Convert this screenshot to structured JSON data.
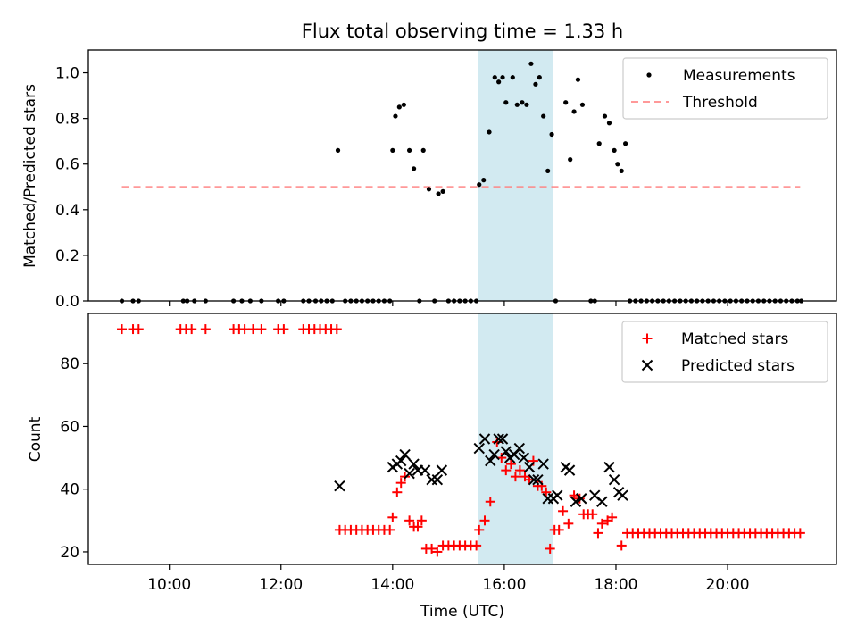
{
  "title": "Flux total observing time = 1.33 h",
  "x_axis": {
    "label": "Time (UTC)",
    "range_hours": [
      8.55,
      21.95
    ],
    "ticks": [
      {
        "value": 10,
        "label": "10:00"
      },
      {
        "value": 12,
        "label": "12:00"
      },
      {
        "value": 14,
        "label": "14:00"
      },
      {
        "value": 16,
        "label": "16:00"
      },
      {
        "value": 18,
        "label": "18:00"
      },
      {
        "value": 20,
        "label": "20:00"
      }
    ]
  },
  "shaded_interval_hours": [
    15.53,
    16.87
  ],
  "colors": {
    "measurements": "#000000",
    "threshold": "#ff7f7f",
    "matched": "#ff0000",
    "predicted": "#000000",
    "band": "#add8e6"
  },
  "chart_data": [
    {
      "type": "scatter",
      "ylabel": "Matched/Predicted stars",
      "ylim": [
        0,
        1.1
      ],
      "yticks": [
        "0.0",
        "0.2",
        "0.4",
        "0.6",
        "0.8",
        "1.0"
      ],
      "legend": {
        "placement": "upper right",
        "entries": [
          "Measurements",
          "Threshold"
        ]
      },
      "threshold": {
        "name": "Threshold",
        "value": 0.5,
        "x_range": [
          9.15,
          21.3
        ]
      },
      "series": [
        {
          "name": "Measurements",
          "points": [
            [
              9.15,
              0
            ],
            [
              9.35,
              0
            ],
            [
              9.45,
              0
            ],
            [
              10.25,
              0
            ],
            [
              10.32,
              0
            ],
            [
              10.45,
              0
            ],
            [
              10.65,
              0
            ],
            [
              11.15,
              0
            ],
            [
              11.3,
              0
            ],
            [
              11.45,
              0
            ],
            [
              11.65,
              0
            ],
            [
              11.95,
              0
            ],
            [
              12.05,
              0
            ],
            [
              12.4,
              0
            ],
            [
              12.5,
              0
            ],
            [
              12.62,
              0
            ],
            [
              12.72,
              0
            ],
            [
              12.82,
              0
            ],
            [
              12.92,
              0
            ],
            [
              13.02,
              0.66
            ],
            [
              13.15,
              0
            ],
            [
              13.25,
              0
            ],
            [
              13.35,
              0
            ],
            [
              13.45,
              0
            ],
            [
              13.55,
              0
            ],
            [
              13.65,
              0
            ],
            [
              13.75,
              0
            ],
            [
              13.85,
              0
            ],
            [
              13.95,
              0
            ],
            [
              14.0,
              0.66
            ],
            [
              14.05,
              0.81
            ],
            [
              14.12,
              0.85
            ],
            [
              14.2,
              0.86
            ],
            [
              14.3,
              0.66
            ],
            [
              14.38,
              0.58
            ],
            [
              14.48,
              0
            ],
            [
              14.55,
              0.66
            ],
            [
              14.65,
              0.49
            ],
            [
              14.75,
              0
            ],
            [
              14.82,
              0.47
            ],
            [
              14.9,
              0.48
            ],
            [
              15.0,
              0
            ],
            [
              15.1,
              0
            ],
            [
              15.2,
              0
            ],
            [
              15.3,
              0
            ],
            [
              15.4,
              0
            ],
            [
              15.5,
              0
            ],
            [
              15.55,
              0.51
            ],
            [
              15.63,
              0.53
            ],
            [
              15.73,
              0.74
            ],
            [
              15.83,
              0.98
            ],
            [
              15.9,
              0.96
            ],
            [
              15.97,
              0.98
            ],
            [
              16.03,
              0.87
            ],
            [
              16.15,
              0.98
            ],
            [
              16.23,
              0.86
            ],
            [
              16.32,
              0.87
            ],
            [
              16.4,
              0.86
            ],
            [
              16.48,
              1.04
            ],
            [
              16.56,
              0.95
            ],
            [
              16.63,
              0.98
            ],
            [
              16.7,
              0.81
            ],
            [
              16.78,
              0.57
            ],
            [
              16.85,
              0.73
            ],
            [
              16.92,
              0
            ],
            [
              17.1,
              0.87
            ],
            [
              17.18,
              0.62
            ],
            [
              17.25,
              0.83
            ],
            [
              17.32,
              0.97
            ],
            [
              17.4,
              0.86
            ],
            [
              17.55,
              0
            ],
            [
              17.62,
              0
            ],
            [
              17.7,
              0.69
            ],
            [
              17.8,
              0.81
            ],
            [
              17.88,
              0.78
            ],
            [
              17.97,
              0.66
            ],
            [
              18.03,
              0.6
            ],
            [
              18.1,
              0.57
            ],
            [
              18.17,
              0.69
            ],
            [
              18.25,
              0
            ],
            [
              18.35,
              0
            ],
            [
              18.45,
              0
            ],
            [
              18.55,
              0
            ],
            [
              18.65,
              0
            ],
            [
              18.75,
              0
            ],
            [
              18.85,
              0
            ],
            [
              18.95,
              0
            ],
            [
              19.05,
              0
            ],
            [
              19.15,
              0
            ],
            [
              19.25,
              0
            ],
            [
              19.35,
              0
            ],
            [
              19.45,
              0
            ],
            [
              19.55,
              0
            ],
            [
              19.65,
              0
            ],
            [
              19.75,
              0
            ],
            [
              19.85,
              0
            ],
            [
              19.95,
              0
            ],
            [
              20.05,
              0
            ],
            [
              20.15,
              0
            ],
            [
              20.25,
              0
            ],
            [
              20.35,
              0
            ],
            [
              20.45,
              0
            ],
            [
              20.55,
              0
            ],
            [
              20.65,
              0
            ],
            [
              20.75,
              0
            ],
            [
              20.85,
              0
            ],
            [
              20.95,
              0
            ],
            [
              21.05,
              0
            ],
            [
              21.15,
              0
            ],
            [
              21.25,
              0
            ],
            [
              21.32,
              0
            ]
          ]
        }
      ]
    },
    {
      "type": "scatter",
      "ylabel": "Count",
      "xlabel": "Time (UTC)",
      "ylim": [
        16,
        96
      ],
      "yticks": [
        20,
        40,
        60,
        80
      ],
      "legend": {
        "placement": "upper right",
        "entries": [
          "Matched stars",
          "Predicted stars"
        ]
      },
      "series": [
        {
          "name": "Matched stars",
          "points": [
            [
              9.15,
              91
            ],
            [
              9.35,
              91
            ],
            [
              9.45,
              91
            ],
            [
              10.2,
              91
            ],
            [
              10.3,
              91
            ],
            [
              10.4,
              91
            ],
            [
              10.65,
              91
            ],
            [
              11.15,
              91
            ],
            [
              11.25,
              91
            ],
            [
              11.35,
              91
            ],
            [
              11.5,
              91
            ],
            [
              11.65,
              91
            ],
            [
              11.95,
              91
            ],
            [
              12.05,
              91
            ],
            [
              12.4,
              91
            ],
            [
              12.5,
              91
            ],
            [
              12.6,
              91
            ],
            [
              12.7,
              91
            ],
            [
              12.8,
              91
            ],
            [
              12.9,
              91
            ],
            [
              13.0,
              91
            ],
            [
              13.05,
              27
            ],
            [
              13.15,
              27
            ],
            [
              13.25,
              27
            ],
            [
              13.35,
              27
            ],
            [
              13.45,
              27
            ],
            [
              13.55,
              27
            ],
            [
              13.65,
              27
            ],
            [
              13.75,
              27
            ],
            [
              13.85,
              27
            ],
            [
              13.95,
              27
            ],
            [
              14.0,
              31
            ],
            [
              14.08,
              39
            ],
            [
              14.15,
              42
            ],
            [
              14.22,
              44
            ],
            [
              14.3,
              30
            ],
            [
              14.38,
              28
            ],
            [
              14.45,
              28
            ],
            [
              14.52,
              30
            ],
            [
              14.6,
              21
            ],
            [
              14.7,
              21
            ],
            [
              14.8,
              20
            ],
            [
              14.9,
              22
            ],
            [
              15.0,
              22
            ],
            [
              15.1,
              22
            ],
            [
              15.2,
              22
            ],
            [
              15.3,
              22
            ],
            [
              15.4,
              22
            ],
            [
              15.5,
              22
            ],
            [
              15.55,
              27
            ],
            [
              15.65,
              30
            ],
            [
              15.75,
              36
            ],
            [
              15.87,
              55
            ],
            [
              15.95,
              50
            ],
            [
              16.03,
              46
            ],
            [
              16.12,
              48
            ],
            [
              16.2,
              44
            ],
            [
              16.28,
              46
            ],
            [
              16.37,
              44
            ],
            [
              16.45,
              43
            ],
            [
              16.52,
              49
            ],
            [
              16.6,
              41
            ],
            [
              16.67,
              41
            ],
            [
              16.75,
              39
            ],
            [
              16.82,
              21
            ],
            [
              16.9,
              27
            ],
            [
              16.98,
              27
            ],
            [
              17.05,
              33
            ],
            [
              17.15,
              29
            ],
            [
              17.25,
              38
            ],
            [
              17.35,
              37
            ],
            [
              17.42,
              32
            ],
            [
              17.5,
              32
            ],
            [
              17.58,
              32
            ],
            [
              17.68,
              26
            ],
            [
              17.75,
              29
            ],
            [
              17.85,
              30
            ],
            [
              17.93,
              31
            ],
            [
              18.1,
              22
            ],
            [
              18.2,
              26
            ],
            [
              18.3,
              26
            ],
            [
              18.4,
              26
            ],
            [
              18.5,
              26
            ],
            [
              18.6,
              26
            ],
            [
              18.7,
              26
            ],
            [
              18.8,
              26
            ],
            [
              18.9,
              26
            ],
            [
              19.0,
              26
            ],
            [
              19.1,
              26
            ],
            [
              19.2,
              26
            ],
            [
              19.3,
              26
            ],
            [
              19.4,
              26
            ],
            [
              19.5,
              26
            ],
            [
              19.6,
              26
            ],
            [
              19.7,
              26
            ],
            [
              19.8,
              26
            ],
            [
              19.9,
              26
            ],
            [
              20.0,
              26
            ],
            [
              20.1,
              26
            ],
            [
              20.2,
              26
            ],
            [
              20.3,
              26
            ],
            [
              20.4,
              26
            ],
            [
              20.5,
              26
            ],
            [
              20.6,
              26
            ],
            [
              20.7,
              26
            ],
            [
              20.8,
              26
            ],
            [
              20.9,
              26
            ],
            [
              21.0,
              26
            ],
            [
              21.1,
              26
            ],
            [
              21.2,
              26
            ],
            [
              21.3,
              26
            ]
          ]
        },
        {
          "name": "Predicted stars",
          "points": [
            [
              13.05,
              41
            ],
            [
              14.0,
              47
            ],
            [
              14.08,
              48
            ],
            [
              14.15,
              49
            ],
            [
              14.22,
              51
            ],
            [
              14.3,
              45
            ],
            [
              14.38,
              48
            ],
            [
              14.45,
              46
            ],
            [
              14.58,
              46
            ],
            [
              14.7,
              43
            ],
            [
              14.8,
              43
            ],
            [
              14.88,
              46
            ],
            [
              15.55,
              53
            ],
            [
              15.65,
              56
            ],
            [
              15.75,
              49
            ],
            [
              15.82,
              51
            ],
            [
              15.9,
              56
            ],
            [
              15.97,
              56
            ],
            [
              16.03,
              52
            ],
            [
              16.1,
              50
            ],
            [
              16.18,
              51
            ],
            [
              16.27,
              53
            ],
            [
              16.35,
              50
            ],
            [
              16.45,
              47
            ],
            [
              16.53,
              43
            ],
            [
              16.6,
              43
            ],
            [
              16.7,
              48
            ],
            [
              16.78,
              37
            ],
            [
              16.88,
              37
            ],
            [
              16.95,
              38
            ],
            [
              17.1,
              47
            ],
            [
              17.17,
              46
            ],
            [
              17.28,
              36
            ],
            [
              17.38,
              37
            ],
            [
              17.62,
              38
            ],
            [
              17.75,
              36
            ],
            [
              17.88,
              47
            ],
            [
              17.97,
              43
            ],
            [
              18.05,
              39
            ],
            [
              18.12,
              38
            ]
          ]
        }
      ]
    }
  ]
}
